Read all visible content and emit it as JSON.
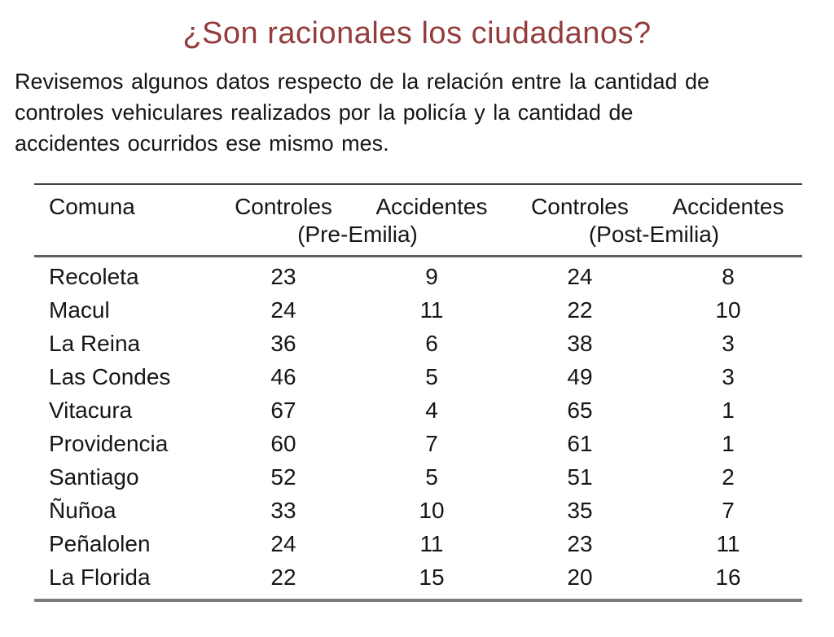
{
  "slide": {
    "title": "¿Son racionales los ciudadanos?",
    "title_color": "#943c3c",
    "text_color": "#161616",
    "intro_lines": [
      "Revisemos algunos datos respecto de la relación entre la cantidad de",
      "controles vehiculares realizados por la policía y la cantidad de",
      "accidentes ocurridos ese mismo mes."
    ]
  },
  "table": {
    "col_headers": [
      "Comuna",
      "Controles",
      "Accidentes",
      "Controles",
      "Accidentes"
    ],
    "group_headers": [
      "(Pre-Emilia)",
      "(Post-Emilia)"
    ],
    "rows": [
      [
        "Recoleta",
        "23",
        "9",
        "24",
        "8"
      ],
      [
        "Macul",
        "24",
        "11",
        "22",
        "10"
      ],
      [
        "La Reina",
        "36",
        "6",
        "38",
        "3"
      ],
      [
        "Las Condes",
        "46",
        "5",
        "49",
        "3"
      ],
      [
        "Vitacura",
        "67",
        "4",
        "65",
        "1"
      ],
      [
        "Providencia",
        "60",
        "7",
        "61",
        "1"
      ],
      [
        "Santiago",
        "52",
        "5",
        "51",
        "2"
      ],
      [
        "Ñuñoa",
        "33",
        "10",
        "35",
        "7"
      ],
      [
        "Peñalolen",
        "24",
        "11",
        "23",
        "11"
      ],
      [
        "La Florida",
        "22",
        "15",
        "20",
        "16"
      ]
    ]
  }
}
